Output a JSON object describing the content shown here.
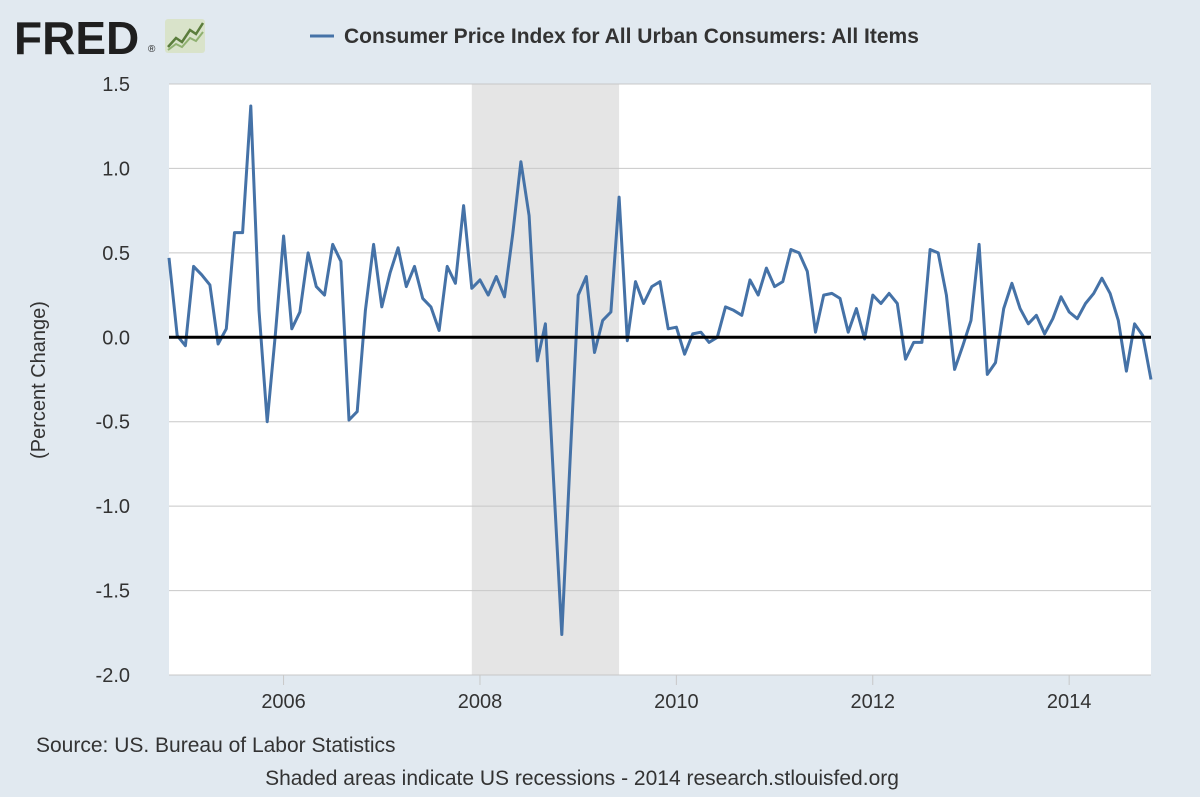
{
  "logo": {
    "text": "FRED",
    "mark": "®"
  },
  "colors": {
    "background": "#e1e9f0",
    "plot_background": "#ffffff",
    "recession_shade": "#e5e5e5",
    "gridline": "#c8c8c8",
    "series": "#4572a7",
    "zero_line": "#000000",
    "logo_icon": "#7c9c5e"
  },
  "chart_data": {
    "type": "line",
    "series": [
      {
        "name": "Consumer Price Index for All Urban Consumers: All Items",
        "x": [
          "2004-11",
          "2004-12",
          "2005-01",
          "2005-02",
          "2005-03",
          "2005-04",
          "2005-05",
          "2005-06",
          "2005-07",
          "2005-08",
          "2005-09",
          "2005-10",
          "2005-11",
          "2005-12",
          "2006-01",
          "2006-02",
          "2006-03",
          "2006-04",
          "2006-05",
          "2006-06",
          "2006-07",
          "2006-08",
          "2006-09",
          "2006-10",
          "2006-11",
          "2006-12",
          "2007-01",
          "2007-02",
          "2007-03",
          "2007-04",
          "2007-05",
          "2007-06",
          "2007-07",
          "2007-08",
          "2007-09",
          "2007-10",
          "2007-11",
          "2007-12",
          "2008-01",
          "2008-02",
          "2008-03",
          "2008-04",
          "2008-05",
          "2008-06",
          "2008-07",
          "2008-08",
          "2008-09",
          "2008-10",
          "2008-11",
          "2008-12",
          "2009-01",
          "2009-02",
          "2009-03",
          "2009-04",
          "2009-05",
          "2009-06",
          "2009-07",
          "2009-08",
          "2009-09",
          "2009-10",
          "2009-11",
          "2009-12",
          "2010-01",
          "2010-02",
          "2010-03",
          "2010-04",
          "2010-05",
          "2010-06",
          "2010-07",
          "2010-08",
          "2010-09",
          "2010-10",
          "2010-11",
          "2010-12",
          "2011-01",
          "2011-02",
          "2011-03",
          "2011-04",
          "2011-05",
          "2011-06",
          "2011-07",
          "2011-08",
          "2011-09",
          "2011-10",
          "2011-11",
          "2011-12",
          "2012-01",
          "2012-02",
          "2012-03",
          "2012-04",
          "2012-05",
          "2012-06",
          "2012-07",
          "2012-08",
          "2012-09",
          "2012-10",
          "2012-11",
          "2012-12",
          "2013-01",
          "2013-02",
          "2013-03",
          "2013-04",
          "2013-05",
          "2013-06",
          "2013-07",
          "2013-08",
          "2013-09",
          "2013-10",
          "2013-11",
          "2013-12",
          "2014-01",
          "2014-02",
          "2014-03",
          "2014-04",
          "2014-05",
          "2014-06",
          "2014-07",
          "2014-08",
          "2014-09",
          "2014-10",
          "2014-11"
        ],
        "values": [
          0.47,
          0.01,
          -0.05,
          0.42,
          0.37,
          0.31,
          -0.04,
          0.05,
          0.62,
          0.62,
          1.37,
          0.16,
          -0.5,
          0.02,
          0.6,
          0.05,
          0.15,
          0.5,
          0.3,
          0.25,
          0.55,
          0.45,
          -0.49,
          -0.44,
          0.16,
          0.55,
          0.18,
          0.38,
          0.53,
          0.3,
          0.42,
          0.23,
          0.18,
          0.04,
          0.42,
          0.32,
          0.78,
          0.29,
          0.34,
          0.25,
          0.36,
          0.24,
          0.61,
          1.04,
          0.72,
          -0.14,
          0.08,
          -0.85,
          -1.76,
          -0.74,
          0.25,
          0.36,
          -0.09,
          0.1,
          0.15,
          0.83,
          -0.02,
          0.33,
          0.2,
          0.3,
          0.33,
          0.05,
          0.06,
          -0.1,
          0.02,
          0.03,
          -0.03,
          0.0,
          0.18,
          0.16,
          0.13,
          0.34,
          0.25,
          0.41,
          0.3,
          0.33,
          0.52,
          0.5,
          0.39,
          0.03,
          0.25,
          0.26,
          0.23,
          0.03,
          0.17,
          -0.01,
          0.25,
          0.2,
          0.26,
          0.2,
          -0.13,
          -0.03,
          -0.03,
          0.52,
          0.5,
          0.25,
          -0.19,
          -0.05,
          0.1,
          0.55,
          -0.22,
          -0.15,
          0.17,
          0.32,
          0.17,
          0.08,
          0.13,
          0.02,
          0.11,
          0.24,
          0.15,
          0.11,
          0.2,
          0.26,
          0.35,
          0.26,
          0.1,
          -0.2,
          0.08,
          0.01,
          -0.25
        ]
      }
    ],
    "xlim": [
      "2004-11",
      "2014-11"
    ],
    "ylim": [
      -2.0,
      1.5
    ],
    "yticks": [
      1.5,
      1.0,
      0.5,
      0.0,
      -0.5,
      -1.0,
      -1.5,
      -2.0
    ],
    "ytick_labels": [
      "1.5",
      "1.0",
      "0.5",
      "0.0",
      "-0.5",
      "-1.0",
      "-1.5",
      "-2.0"
    ],
    "xticks": [
      "2006-01",
      "2008-01",
      "2010-01",
      "2012-01",
      "2014-01"
    ],
    "xtick_labels": [
      "2006",
      "2008",
      "2010",
      "2012",
      "2014"
    ],
    "ylabel": "(Percent Change)",
    "xlabel": "",
    "recessions": [
      {
        "start": "2007-12",
        "end": "2009-06"
      }
    ],
    "zero_line": 0.0,
    "grid": "horizontal",
    "legend_position": "top"
  },
  "footer": {
    "source": "Source: US. Bureau of Labor Statistics",
    "note": "Shaded areas indicate US recessions - 2014 research.stlouisfed.org"
  }
}
